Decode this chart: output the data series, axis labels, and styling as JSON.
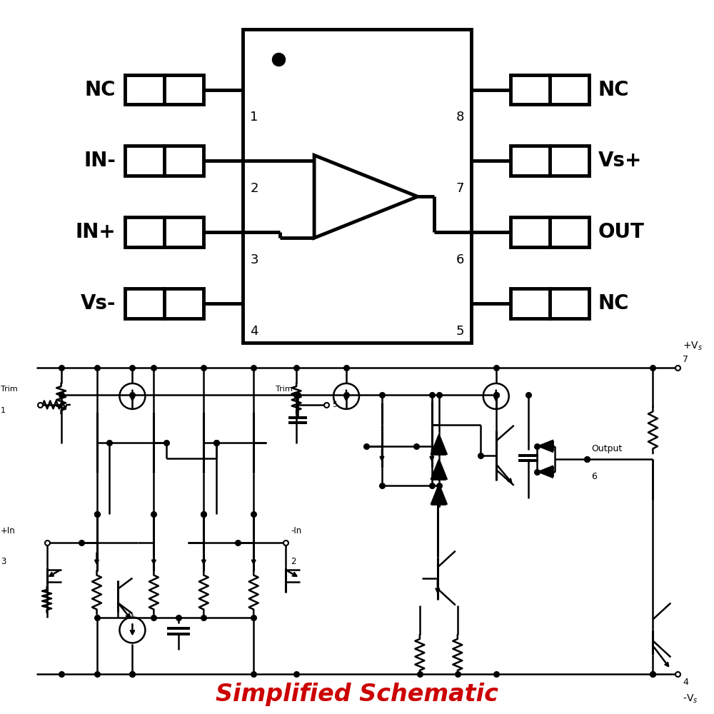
{
  "bg_color": "#ffffff",
  "line_color": "#000000",
  "red_color": "#cc0000",
  "title": "Simplified Schematic",
  "title_fontsize": 24,
  "label_fontsize": 20,
  "pin_fontsize": 13,
  "left_labels": [
    "NC",
    "IN-",
    "IN+",
    "Vs-"
  ],
  "right_labels": [
    "NC",
    "Vs+",
    "OUT",
    "NC"
  ],
  "left_pins": [
    "1",
    "2",
    "3",
    "4"
  ],
  "right_pins": [
    "8",
    "7",
    "6",
    "5"
  ]
}
